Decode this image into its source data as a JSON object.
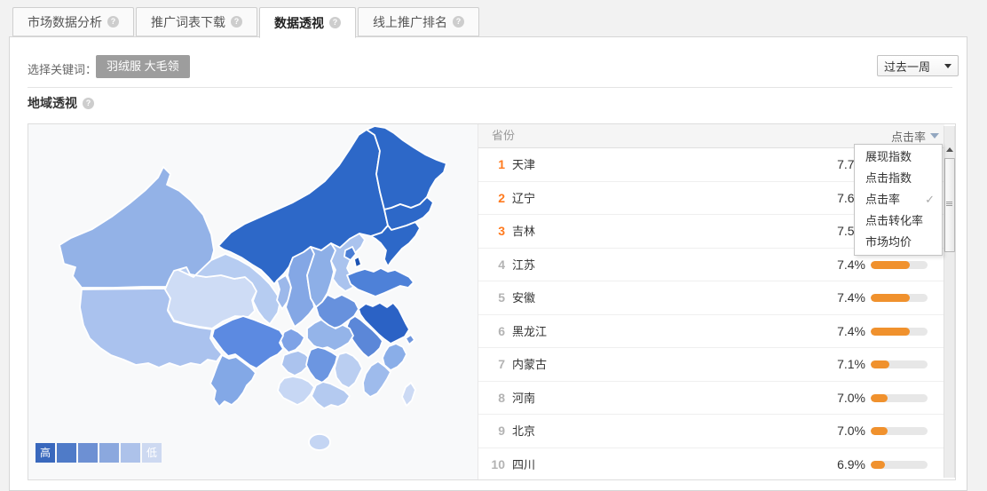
{
  "tabs": [
    {
      "label": "市场数据分析",
      "active": false
    },
    {
      "label": "推广词表下载",
      "active": false
    },
    {
      "label": "数据透视",
      "active": true
    },
    {
      "label": "线上推广排名",
      "active": false
    }
  ],
  "toolbar": {
    "keyword_label": "选择关键词：",
    "keyword_chip": "羽绒服 大毛领",
    "period_select": "过去一周"
  },
  "section": {
    "title": "地域透视"
  },
  "icons": {
    "help": "?",
    "check": "✓"
  },
  "table": {
    "province_header": "省份",
    "metric_header": "点击率",
    "bar_color": "#f0912d",
    "rank_top_color": "#ff7a1e",
    "rows": [
      {
        "rank": "1",
        "name": "天津",
        "value": "7.7%",
        "bar_pct": 100,
        "top": true
      },
      {
        "rank": "2",
        "name": "辽宁",
        "value": "7.6%",
        "bar_pct": 92,
        "top": true
      },
      {
        "rank": "3",
        "name": "吉林",
        "value": "7.5%",
        "bar_pct": 84,
        "top": true
      },
      {
        "rank": "4",
        "name": "江苏",
        "value": "7.4%",
        "bar_pct": 69,
        "top": false
      },
      {
        "rank": "5",
        "name": "安徽",
        "value": "7.4%",
        "bar_pct": 69,
        "top": false
      },
      {
        "rank": "6",
        "name": "黑龙江",
        "value": "7.4%",
        "bar_pct": 69,
        "top": false
      },
      {
        "rank": "7",
        "name": "内蒙古",
        "value": "7.1%",
        "bar_pct": 33,
        "top": false
      },
      {
        "rank": "8",
        "name": "河南",
        "value": "7.0%",
        "bar_pct": 30,
        "top": false
      },
      {
        "rank": "9",
        "name": "北京",
        "value": "7.0%",
        "bar_pct": 30,
        "top": false
      },
      {
        "rank": "10",
        "name": "四川",
        "value": "6.9%",
        "bar_pct": 25,
        "top": false
      }
    ]
  },
  "dropdown": {
    "items": [
      {
        "label": "展现指数",
        "checked": false
      },
      {
        "label": "点击指数",
        "checked": false
      },
      {
        "label": "点击率",
        "checked": true
      },
      {
        "label": "点击转化率",
        "checked": false
      },
      {
        "label": "市场均价",
        "checked": false
      }
    ]
  },
  "map": {
    "legend": {
      "high": "高",
      "low": "低",
      "colors": [
        "#3968bd",
        "#4f7bc8",
        "#6d90d3",
        "#8ba8de",
        "#adc2ea",
        "#cdd9f1"
      ]
    },
    "colors": {
      "xinjiang": "#93b2e7",
      "xizang": "#aac2ee",
      "qinghai": "#cedcf5",
      "gansu": "#b6ccf1",
      "neimenggu": "#2d68c8",
      "heilongjiang": "#2d68c8",
      "jilin": "#2d68c8",
      "liaoning": "#2d68c8",
      "ningxia": "#9cb8ea",
      "shaanxi": "#84a7e5",
      "shanxi": "#8dafe7",
      "hebei": "#aac3ee",
      "beijing": "#4a7dd4",
      "tianjin": "#1b52b2",
      "shandong": "#4e81d8",
      "henan": "#6791dd",
      "jiangsu": "#2b62c5",
      "anhui": "#5b87d8",
      "shanghai": "#6f97de",
      "zhejiang": "#8aaee8",
      "hubei": "#94b4e9",
      "chongqing": "#7ea2e6",
      "sichuan": "#5c8ae1",
      "guizhou": "#abc3ee",
      "hunan": "#6c96e1",
      "jiangxi": "#bacef1",
      "fujian": "#9ebbec",
      "yunnan": "#83a8e6",
      "guangxi": "#c7d7f4",
      "guangdong": "#b4caf0",
      "hainan": "#c4d5f3",
      "taiwan": "#ccdaf4"
    }
  }
}
